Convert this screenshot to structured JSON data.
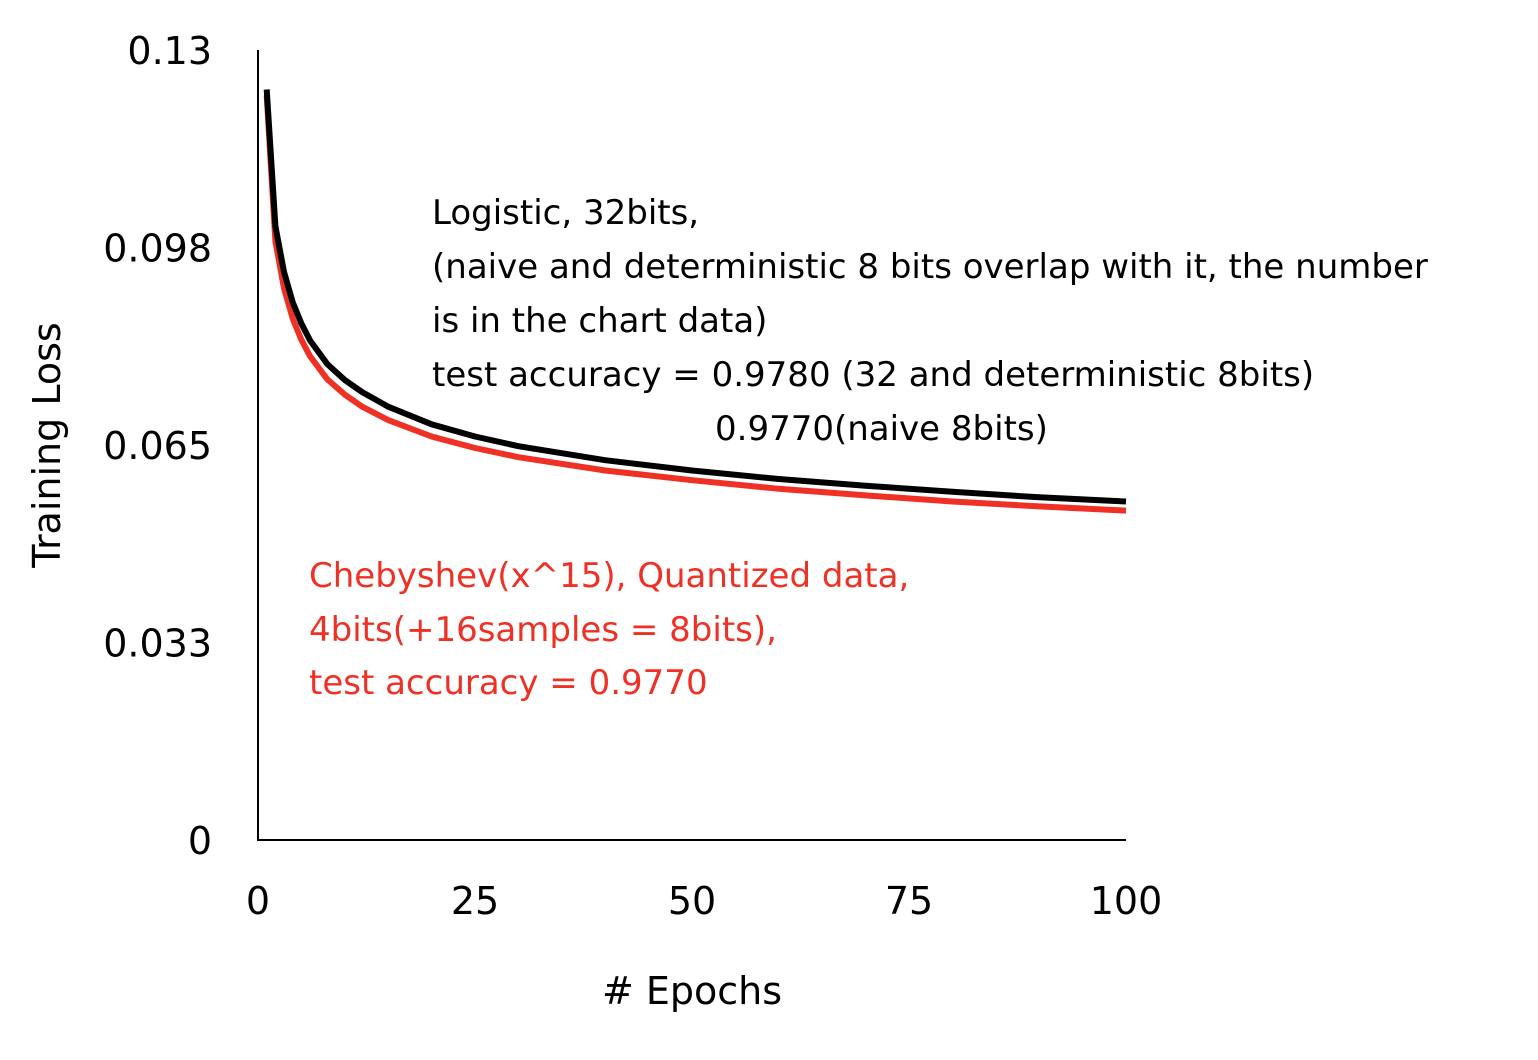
{
  "colors": {
    "black_series": "#000000",
    "red_series": "#ee3124",
    "axis": "#000000",
    "background": "#ffffff"
  },
  "chart_data": {
    "type": "line",
    "xlabel": "# Epochs",
    "ylabel": "Training Loss",
    "xlim": [
      0,
      100
    ],
    "ylim": [
      0,
      0.13
    ],
    "xticks": [
      "0",
      "25",
      "50",
      "75",
      "100"
    ],
    "yticks": [
      "0",
      "0.033",
      "0.065",
      "0.098",
      "0.13"
    ],
    "xtick_values": [
      0,
      25,
      50,
      75,
      100
    ],
    "ytick_values": [
      0,
      0.0325,
      0.065,
      0.0975,
      0.13
    ],
    "grid": false,
    "x": [
      1,
      2,
      3,
      4,
      5,
      6,
      8,
      10,
      12,
      15,
      20,
      25,
      30,
      40,
      50,
      60,
      70,
      80,
      90,
      100
    ],
    "series": [
      {
        "color_key": "black_series",
        "values": [
          0.1235,
          0.101,
          0.0935,
          0.0885,
          0.085,
          0.0822,
          0.0783,
          0.0757,
          0.0737,
          0.0713,
          0.0684,
          0.0664,
          0.0648,
          0.0625,
          0.0608,
          0.0594,
          0.0583,
          0.0573,
          0.0564,
          0.0557
        ]
      },
      {
        "color_key": "red_series",
        "values": [
          0.1225,
          0.0985,
          0.0908,
          0.0858,
          0.0823,
          0.0796,
          0.0758,
          0.0733,
          0.0713,
          0.0691,
          0.0664,
          0.0645,
          0.063,
          0.0608,
          0.0592,
          0.0578,
          0.0567,
          0.0557,
          0.0549,
          0.0542
        ]
      }
    ],
    "annotations": [
      {
        "color_key": "black_series",
        "lines": [
          "Logistic, 32bits,",
          "(naive and deterministic 8 bits overlap with it, the number",
          "is in the chart data)",
          "test accuracy = 0.9780 (32 and deterministic 8bits)",
          "0.9770(naive 8bits)"
        ]
      },
      {
        "color_key": "red_series",
        "lines": [
          "Chebyshev(x^15), Quantized data,",
          "4bits(+16samples = 8bits),",
          "test accuracy = 0.9770"
        ]
      }
    ]
  }
}
